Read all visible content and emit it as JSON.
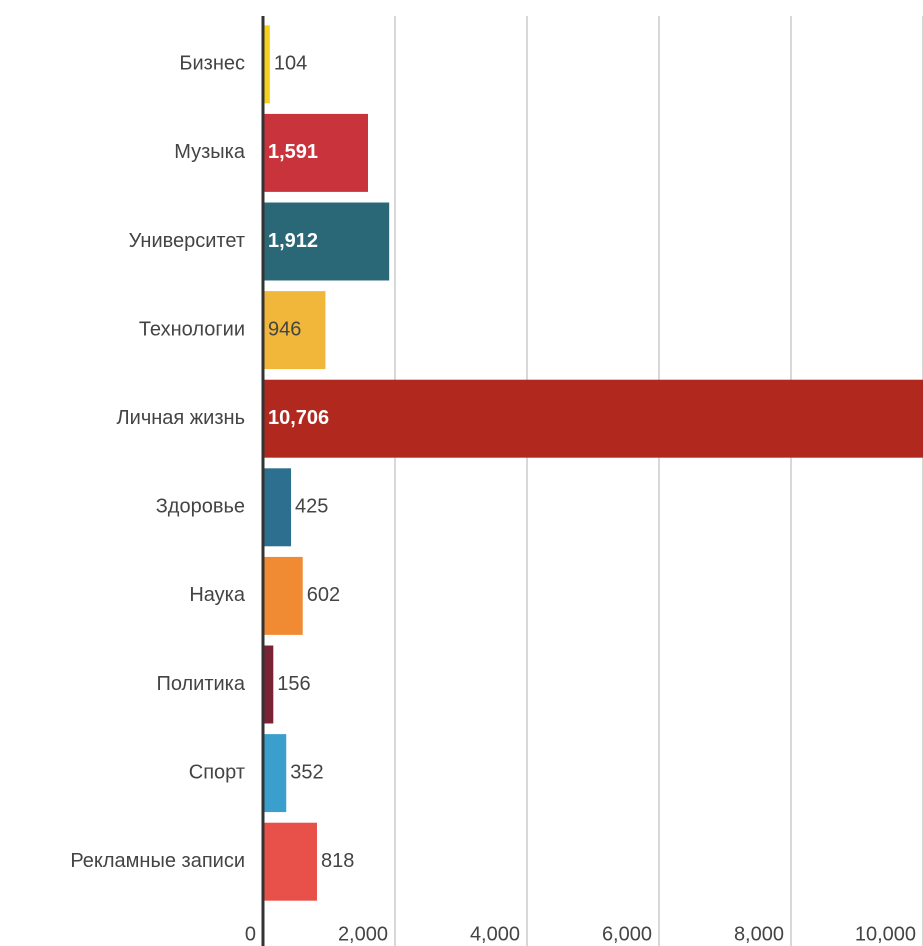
{
  "chart_data": {
    "type": "barh",
    "categories": [
      "Бизнес",
      "Музыка",
      "Университет",
      "Технологии",
      "Личная жизнь",
      "Здоровье",
      "Наука",
      "Политика",
      "Спорт",
      "Рекламные записи"
    ],
    "values": [
      104,
      1591,
      1912,
      946,
      10706,
      425,
      602,
      156,
      352,
      818
    ],
    "value_labels": [
      "104",
      "1,591",
      "1,912",
      "946",
      "10,706",
      "425",
      "602",
      "156",
      "352",
      "818"
    ],
    "colors": [
      "#f5d11e",
      "#c9343c",
      "#2a6777",
      "#f0b73a",
      "#b0281e",
      "#2d6f8e",
      "#f08b34",
      "#7a2335",
      "#3a9fcc",
      "#e8504a"
    ],
    "xlim": [
      0,
      10000
    ],
    "xticks": [
      0,
      {
        "value": 2000,
        "label": "2,000"
      },
      {
        "value": 4000,
        "label": "4,000"
      },
      {
        "value": 6000,
        "label": "6,000"
      },
      {
        "value": 8000,
        "label": "8,000"
      },
      {
        "value": 10000,
        "label": "10,000"
      }
    ],
    "grid": true
  }
}
